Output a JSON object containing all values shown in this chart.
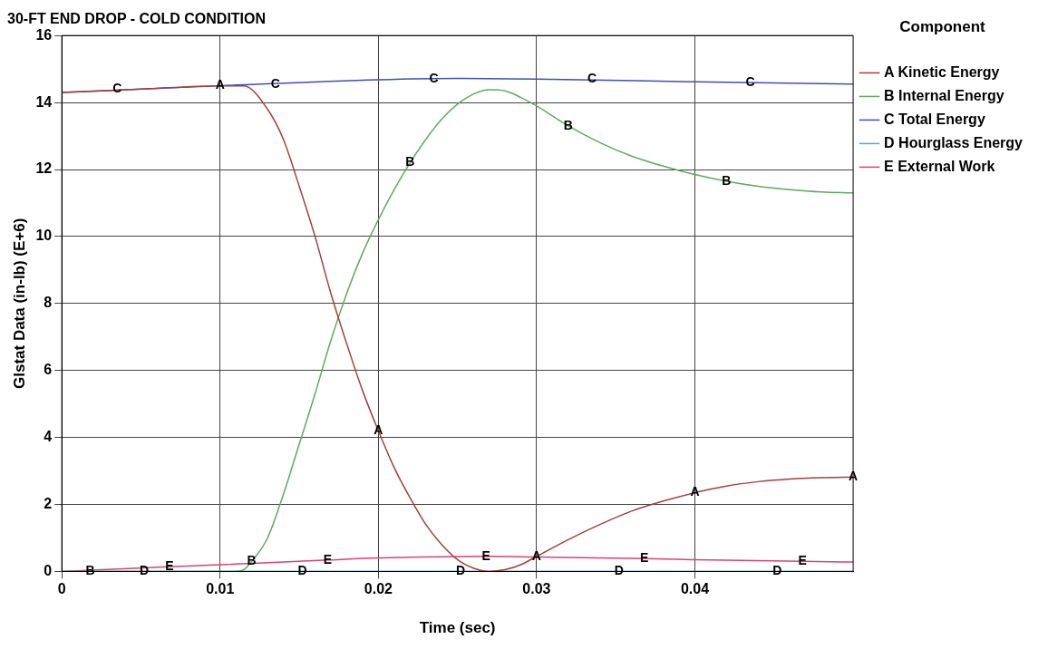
{
  "chart_data": {
    "type": "line",
    "title": "30-FT END DROP - COLD CONDITION",
    "xlabel": "Time (sec)",
    "ylabel": "Glstat Data (in-lb) (E+6)",
    "legend_title": "Component",
    "legend": "top right",
    "grid": true,
    "marker": "none",
    "line_style": "solid",
    "xlim": [
      0,
      0.05
    ],
    "xticks": [
      0,
      0.01,
      0.02,
      0.03,
      0.04
    ],
    "ylim": [
      0,
      16
    ],
    "yticks": [
      0,
      2,
      4,
      6,
      8,
      10,
      12,
      14,
      16
    ],
    "series": [
      {
        "name": "A Kinetic Energy",
        "color": "#a0413c",
        "x": [
          0,
          0.005,
          0.01,
          0.0115,
          0.013,
          0.014,
          0.015,
          0.016,
          0.017,
          0.018,
          0.019,
          0.02,
          0.021,
          0.022,
          0.023,
          0.024,
          0.025,
          0.026,
          0.027,
          0.028,
          0.029,
          0.03,
          0.032,
          0.034,
          0.036,
          0.038,
          0.04,
          0.042,
          0.044,
          0.046,
          0.048,
          0.05
        ],
        "values": [
          14.3,
          14.4,
          14.5,
          14.5,
          13.8,
          12.9,
          11.5,
          10.0,
          8.3,
          6.8,
          5.4,
          4.2,
          3.1,
          2.2,
          1.4,
          0.8,
          0.35,
          0.1,
          0.0,
          0.05,
          0.2,
          0.45,
          0.95,
          1.4,
          1.8,
          2.1,
          2.35,
          2.55,
          2.68,
          2.76,
          2.8,
          2.82
        ]
      },
      {
        "name": "B Internal Energy",
        "color": "#5faa5f",
        "x": [
          0,
          0.011,
          0.0115,
          0.012,
          0.013,
          0.014,
          0.015,
          0.016,
          0.017,
          0.018,
          0.019,
          0.02,
          0.021,
          0.022,
          0.023,
          0.024,
          0.025,
          0.026,
          0.027,
          0.028,
          0.029,
          0.03,
          0.032,
          0.034,
          0.036,
          0.038,
          0.04,
          0.042,
          0.044,
          0.046,
          0.048,
          0.05
        ],
        "values": [
          0,
          0,
          0.05,
          0.3,
          1.0,
          2.3,
          3.8,
          5.3,
          6.9,
          8.3,
          9.5,
          10.5,
          11.4,
          12.2,
          12.9,
          13.5,
          13.95,
          14.25,
          14.38,
          14.35,
          14.15,
          13.9,
          13.3,
          12.8,
          12.4,
          12.1,
          11.85,
          11.65,
          11.5,
          11.4,
          11.33,
          11.3
        ]
      },
      {
        "name": "C Total Energy",
        "color": "#3c50b4",
        "x": [
          0,
          0.01,
          0.02,
          0.025,
          0.03,
          0.04,
          0.05
        ],
        "values": [
          14.3,
          14.5,
          14.68,
          14.72,
          14.7,
          14.62,
          14.55
        ]
      },
      {
        "name": "D Hourglass Energy",
        "color": "#4aa8e0",
        "x": [
          0,
          0.05
        ],
        "values": [
          0,
          0
        ]
      },
      {
        "name": "E External Work",
        "color": "#d9417a",
        "x": [
          0,
          0.0068,
          0.01,
          0.0168,
          0.02,
          0.0268,
          0.03,
          0.0368,
          0.04,
          0.0468,
          0.05
        ],
        "values": [
          0,
          0.14,
          0.2,
          0.34,
          0.4,
          0.45,
          0.43,
          0.38,
          0.35,
          0.3,
          0.28
        ]
      }
    ],
    "annotations": [
      {
        "text": "C",
        "x": 0.0035,
        "y": 14.4
      },
      {
        "text": "C",
        "x": 0.0135,
        "y": 14.55
      },
      {
        "text": "C",
        "x": 0.0235,
        "y": 14.7
      },
      {
        "text": "C",
        "x": 0.0335,
        "y": 14.7
      },
      {
        "text": "C",
        "x": 0.0435,
        "y": 14.6
      },
      {
        "text": "A",
        "x": 0.01,
        "y": 14.5
      },
      {
        "text": "A",
        "x": 0.02,
        "y": 4.2
      },
      {
        "text": "A",
        "x": 0.03,
        "y": 0.45
      },
      {
        "text": "A",
        "x": 0.04,
        "y": 2.35
      },
      {
        "text": "A",
        "x": 0.05,
        "y": 2.82
      },
      {
        "text": "B",
        "x": 0.0018,
        "y": 0
      },
      {
        "text": "B",
        "x": 0.012,
        "y": 0.3
      },
      {
        "text": "B",
        "x": 0.022,
        "y": 12.2
      },
      {
        "text": "B",
        "x": 0.032,
        "y": 13.3
      },
      {
        "text": "B",
        "x": 0.042,
        "y": 11.65
      },
      {
        "text": "D",
        "x": 0.0052,
        "y": 0
      },
      {
        "text": "D",
        "x": 0.0152,
        "y": 0
      },
      {
        "text": "D",
        "x": 0.0252,
        "y": 0
      },
      {
        "text": "D",
        "x": 0.0352,
        "y": 0
      },
      {
        "text": "D",
        "x": 0.0452,
        "y": 0
      },
      {
        "text": "E",
        "x": 0.0068,
        "y": 0.14
      },
      {
        "text": "E",
        "x": 0.0168,
        "y": 0.34
      },
      {
        "text": "E",
        "x": 0.0268,
        "y": 0.45
      },
      {
        "text": "E",
        "x": 0.0368,
        "y": 0.38
      },
      {
        "text": "E",
        "x": 0.0468,
        "y": 0.3
      }
    ]
  }
}
